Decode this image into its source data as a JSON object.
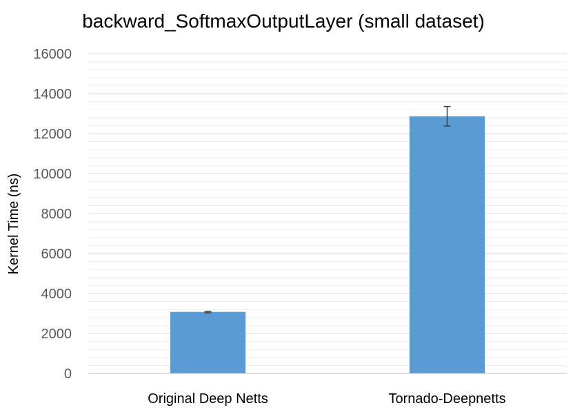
{
  "chart_data": {
    "type": "bar",
    "title": "backward_SoftmaxOutputLayer (small dataset)",
    "xlabel": "",
    "ylabel": "Kernel Time (ns)",
    "ylim": [
      0,
      16000
    ],
    "major_ticks": [
      0,
      2000,
      4000,
      6000,
      8000,
      10000,
      12000,
      14000,
      16000
    ],
    "minor_tick_step": 400,
    "grid": true,
    "legend": "none",
    "categories": [
      "Original Deep Netts",
      "Tornado-Deepnetts"
    ],
    "series": [
      {
        "values": [
          3080,
          12870
        ],
        "error_low": [
          3030,
          12380
        ],
        "error_high": [
          3110,
          13360
        ],
        "color": "#5b9bd5"
      }
    ],
    "colors": {
      "bar": "#5b9bd5",
      "error_bar": "#404040",
      "major_grid": "#d9d9d9",
      "minor_grid": "#eeeeee",
      "axis": "#bfbfbf"
    }
  }
}
